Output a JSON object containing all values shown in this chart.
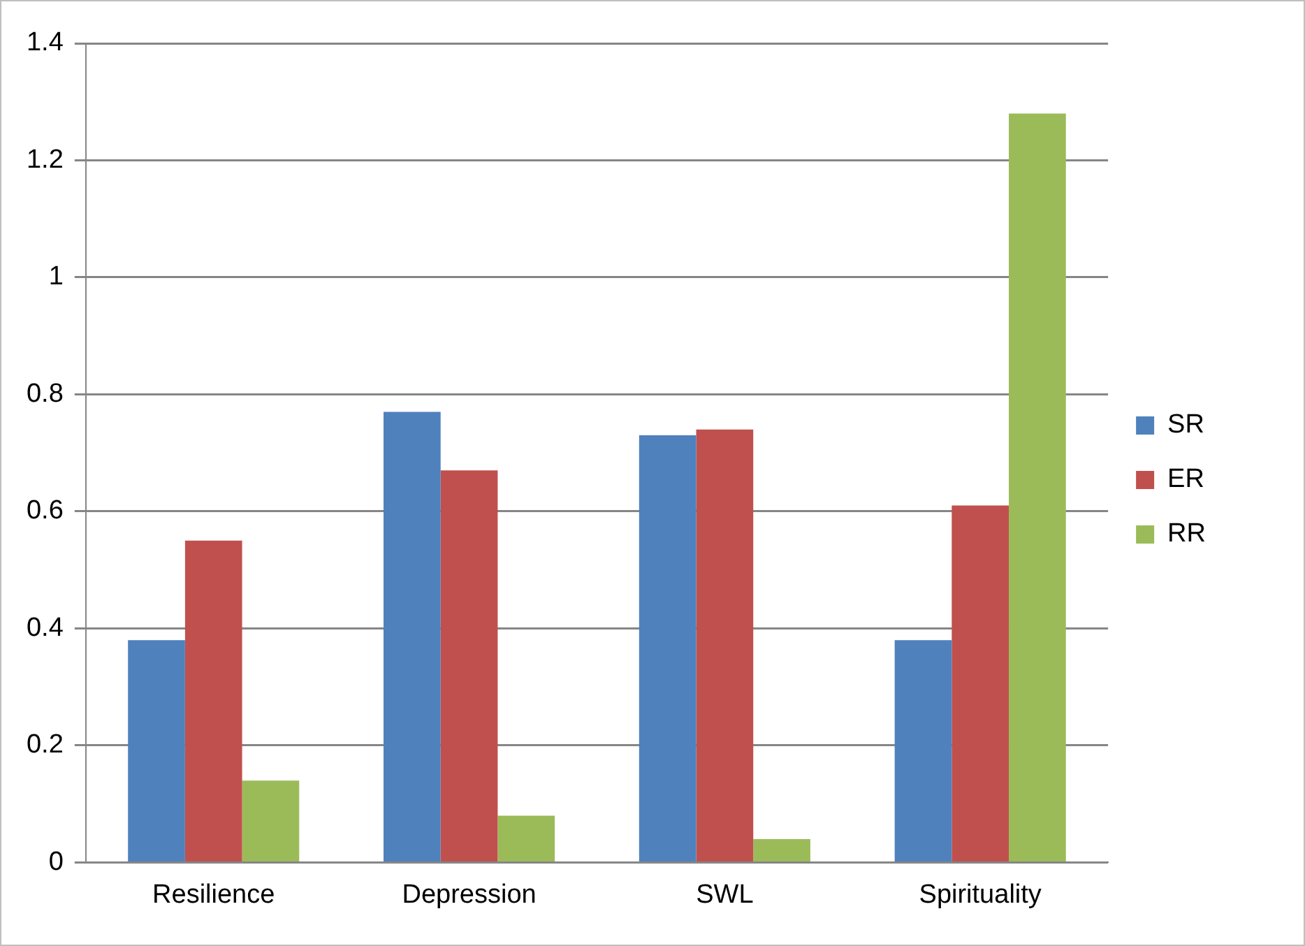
{
  "chart_data": {
    "type": "bar",
    "categories": [
      "Resilience",
      "Depression",
      "SWL",
      "Spirituality"
    ],
    "series": [
      {
        "name": "SR",
        "color": "#4f81bd",
        "values": [
          0.38,
          0.77,
          0.73,
          0.38
        ]
      },
      {
        "name": "ER",
        "color": "#c0504d",
        "values": [
          0.55,
          0.67,
          0.74,
          0.61
        ]
      },
      {
        "name": "RR",
        "color": "#9bbb59",
        "values": [
          0.14,
          0.08,
          0.04,
          1.28
        ]
      }
    ],
    "ylim": [
      0,
      1.4
    ],
    "yticks": [
      0,
      0.2,
      0.4,
      0.6,
      0.8,
      1,
      1.2,
      1.4
    ],
    "grid": "y",
    "legend": "right"
  }
}
